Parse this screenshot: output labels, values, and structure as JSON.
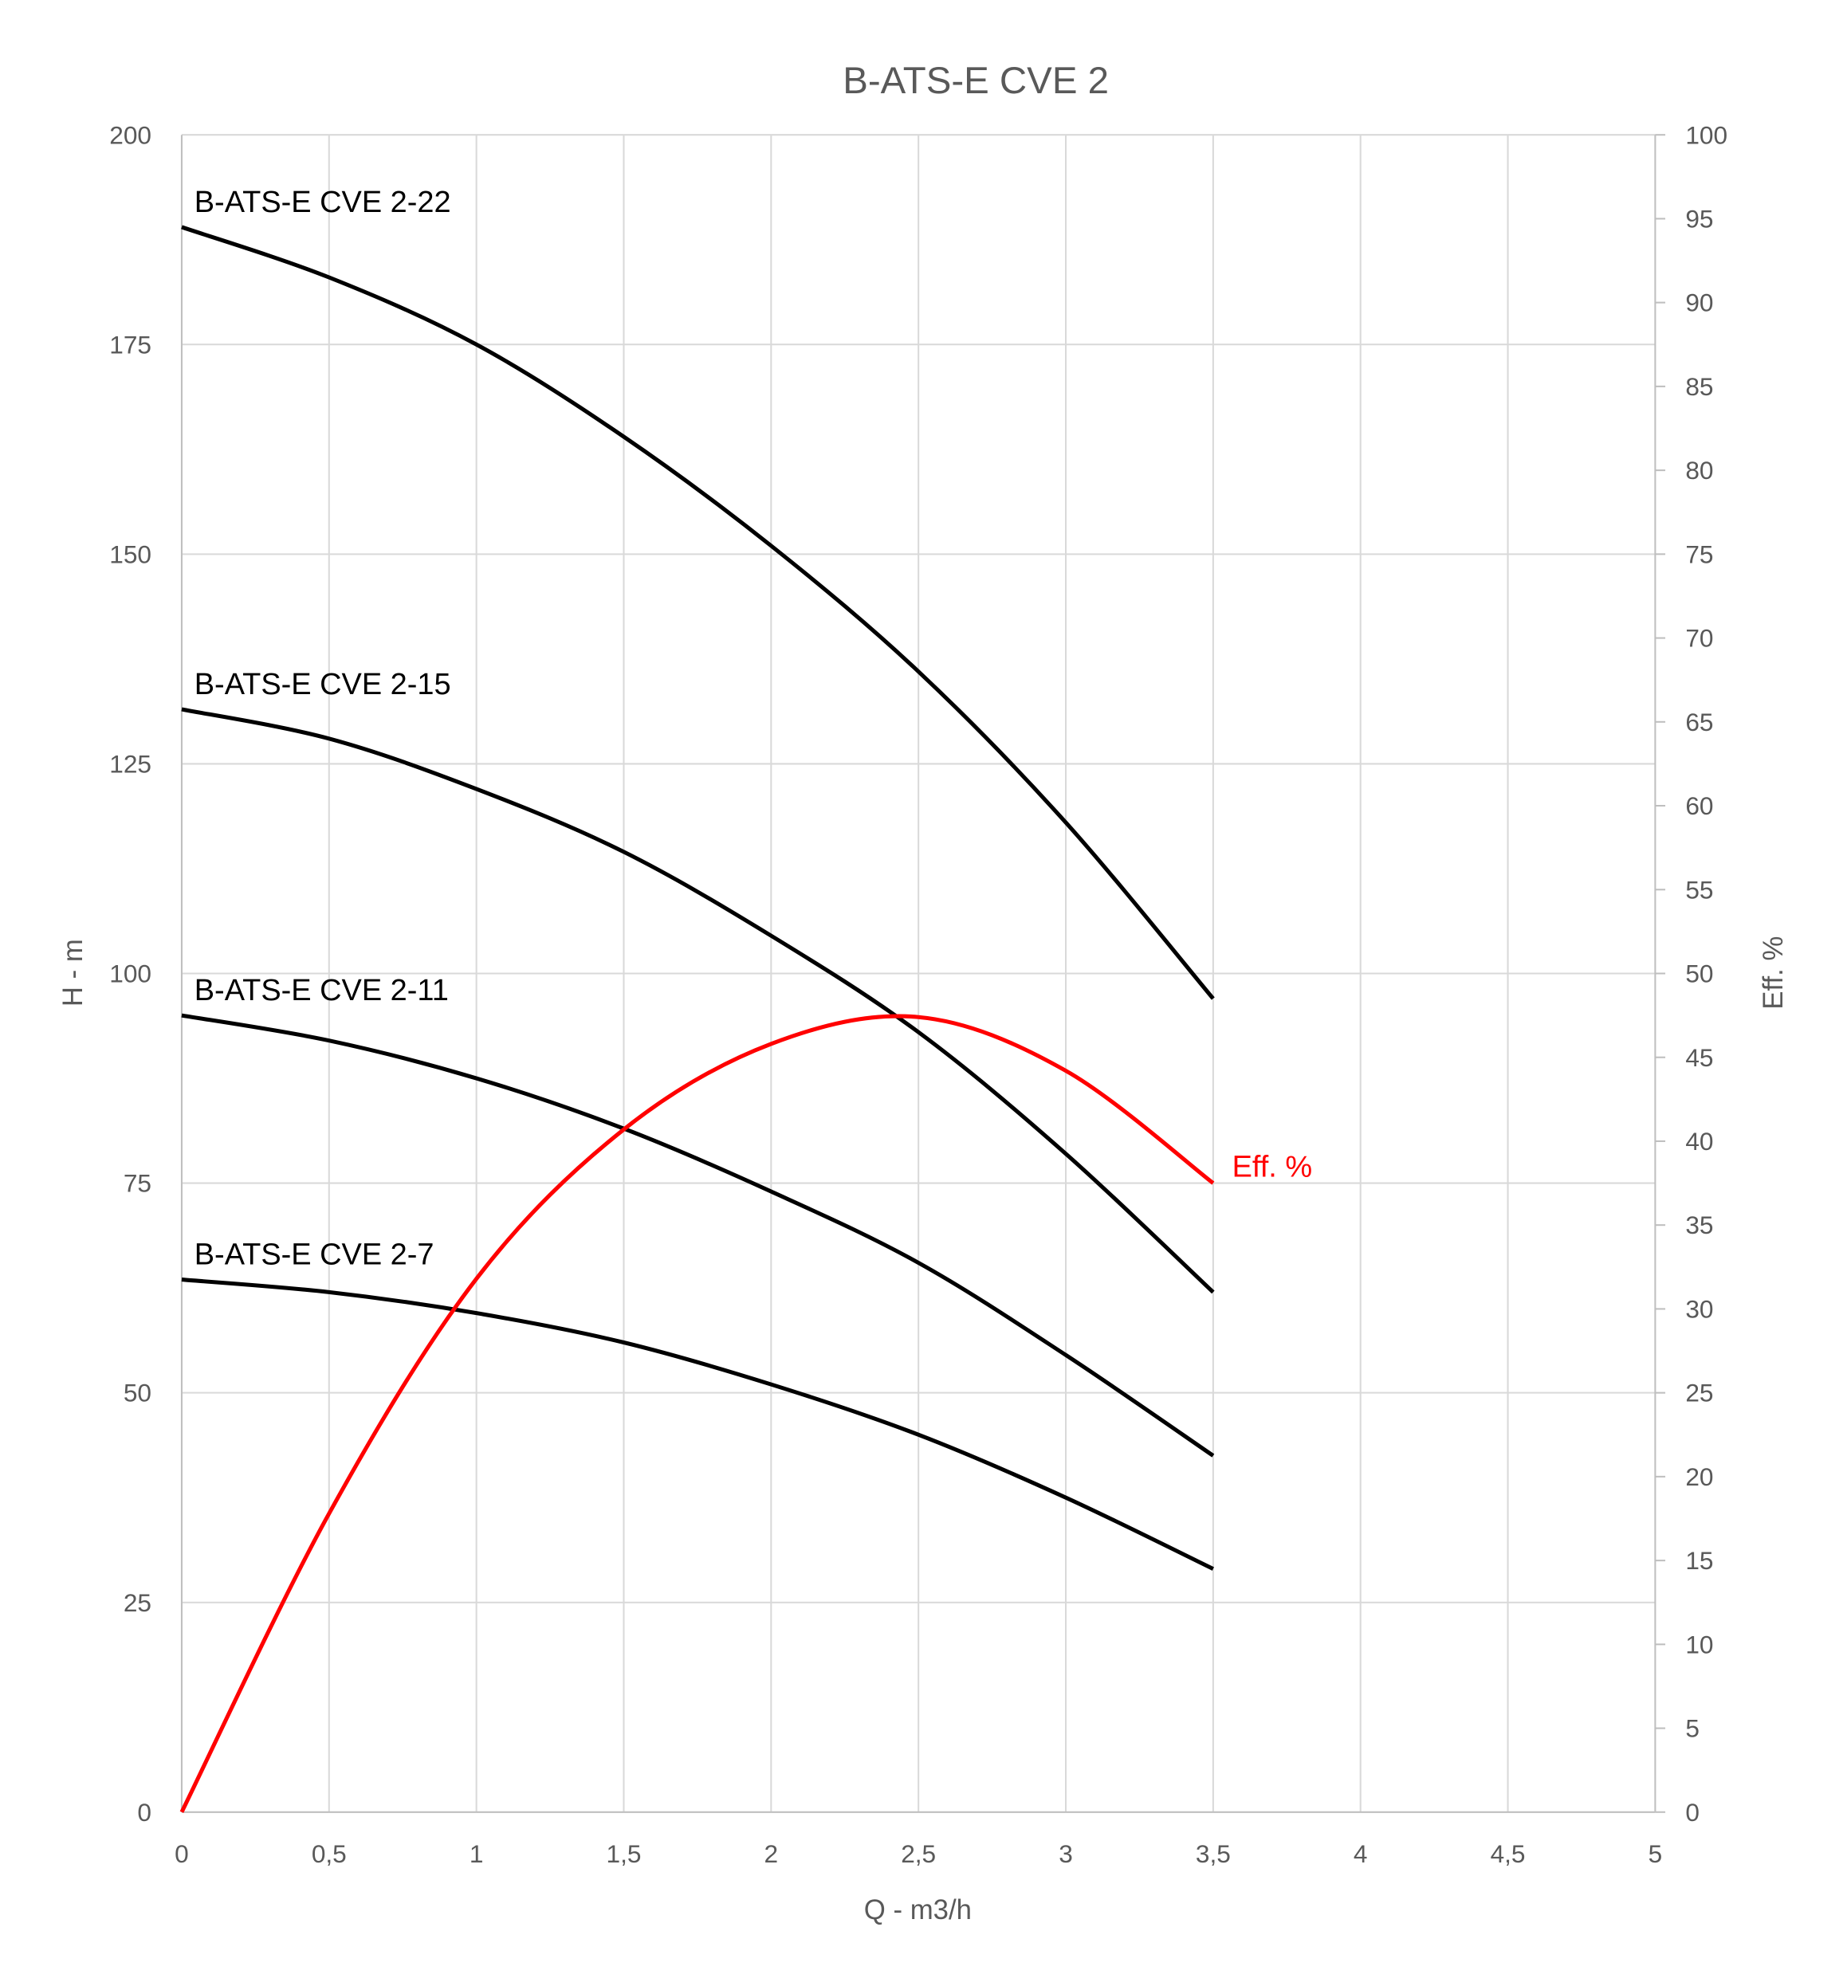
{
  "chart_data": {
    "type": "line",
    "title": "B-ATS-E CVE 2",
    "xlabel": "Q - m3/h",
    "ylabel": "H - m",
    "y2label": "Eff. %",
    "xlim": [
      0,
      5
    ],
    "ylim": [
      0,
      200
    ],
    "y2lim": [
      0,
      100
    ],
    "grid": true,
    "x_ticks": [
      "0",
      "0,5",
      "1",
      "1,5",
      "2",
      "2,5",
      "3",
      "3,5",
      "4",
      "4,5",
      "5"
    ],
    "y_ticks": [
      "0",
      "25",
      "50",
      "75",
      "100",
      "125",
      "150",
      "175",
      "200"
    ],
    "y2_ticks": [
      "0",
      "5",
      "10",
      "15",
      "20",
      "25",
      "30",
      "35",
      "40",
      "45",
      "50",
      "55",
      "60",
      "65",
      "70",
      "75",
      "80",
      "85",
      "90",
      "95",
      "100"
    ],
    "x": [
      0,
      0.5,
      1,
      1.5,
      2,
      2.5,
      3,
      3.5
    ],
    "series": [
      {
        "name": "B-ATS-E CVE 2-22",
        "axis": "left",
        "color": "#000000",
        "values": [
          189,
          183,
          175,
          164,
          151,
          136,
          118,
          97
        ]
      },
      {
        "name": "B-ATS-E CVE 2-15",
        "axis": "left",
        "color": "#000000",
        "values": [
          131.5,
          128,
          122,
          114.5,
          104.5,
          93,
          78.5,
          62
        ]
      },
      {
        "name": "B-ATS-E CVE 2-11",
        "axis": "left",
        "color": "#000000",
        "values": [
          95,
          92,
          87.5,
          81.5,
          74,
          65.5,
          54.5,
          42.5
        ]
      },
      {
        "name": "B-ATS-E CVE 2-7",
        "axis": "left",
        "color": "#000000",
        "values": [
          63.5,
          62,
          59.5,
          56,
          51,
          45,
          37.5,
          29
        ]
      },
      {
        "name": "Eff. %",
        "axis": "right",
        "color": "#ff0000",
        "values": [
          0,
          17.8,
          31.8,
          40.7,
          45.8,
          47.4,
          44.2,
          37.5
        ]
      }
    ]
  }
}
